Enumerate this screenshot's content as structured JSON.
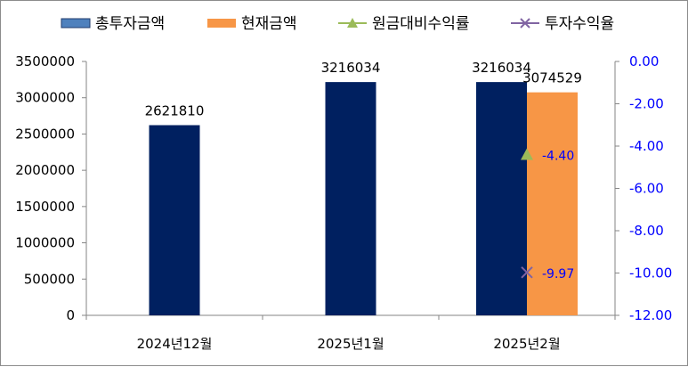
{
  "chart_data": {
    "type": "bar",
    "categories": [
      "2024년12월",
      "2025년1월",
      "2025년2월"
    ],
    "series": [
      {
        "name": "총투자금액",
        "kind": "bar",
        "axis": "left",
        "color": "#002060",
        "values": [
          2621810,
          3216034,
          3216034
        ]
      },
      {
        "name": "현재금액",
        "kind": "bar",
        "axis": "left",
        "color": "#f79646",
        "values": [
          null,
          null,
          3074529
        ]
      },
      {
        "name": "원금대비수익률",
        "kind": "line",
        "marker": "triangle",
        "axis": "right",
        "color": "#9bbb59",
        "values": [
          null,
          null,
          -4.4
        ]
      },
      {
        "name": "투자수익율",
        "kind": "line",
        "marker": "x",
        "axis": "right",
        "color": "#8064a2",
        "values": [
          null,
          null,
          -9.97
        ]
      }
    ],
    "data_labels": {
      "bars": [
        {
          "series": 0,
          "index": 0,
          "text": "2621810"
        },
        {
          "series": 0,
          "index": 1,
          "text": "3216034"
        },
        {
          "series": 0,
          "index": 2,
          "text": "3216034"
        },
        {
          "series": 1,
          "index": 2,
          "text": "3074529"
        }
      ],
      "points": [
        {
          "series": 2,
          "index": 2,
          "text": "-4.40"
        },
        {
          "series": 3,
          "index": 2,
          "text": "-9.97"
        }
      ]
    },
    "y_left": {
      "lim": [
        0,
        3500000
      ],
      "ticks": [
        0,
        500000,
        1000000,
        1500000,
        2000000,
        2500000,
        3000000,
        3500000
      ],
      "tick_labels": [
        "0",
        "500000",
        "1000000",
        "1500000",
        "2000000",
        "2500000",
        "3000000",
        "3500000"
      ]
    },
    "y_right": {
      "lim": [
        -12,
        0
      ],
      "ticks": [
        0,
        -2,
        -4,
        -6,
        -8,
        -10,
        -12
      ],
      "tick_labels": [
        "0.00",
        "-2.00",
        "-4.00",
        "-6.00",
        "-8.00",
        "-10.00",
        "-12.00"
      ],
      "zero_label_color": "#ff0000",
      "label_color": "#0000ff"
    },
    "legend_position": "top",
    "grid": false
  }
}
